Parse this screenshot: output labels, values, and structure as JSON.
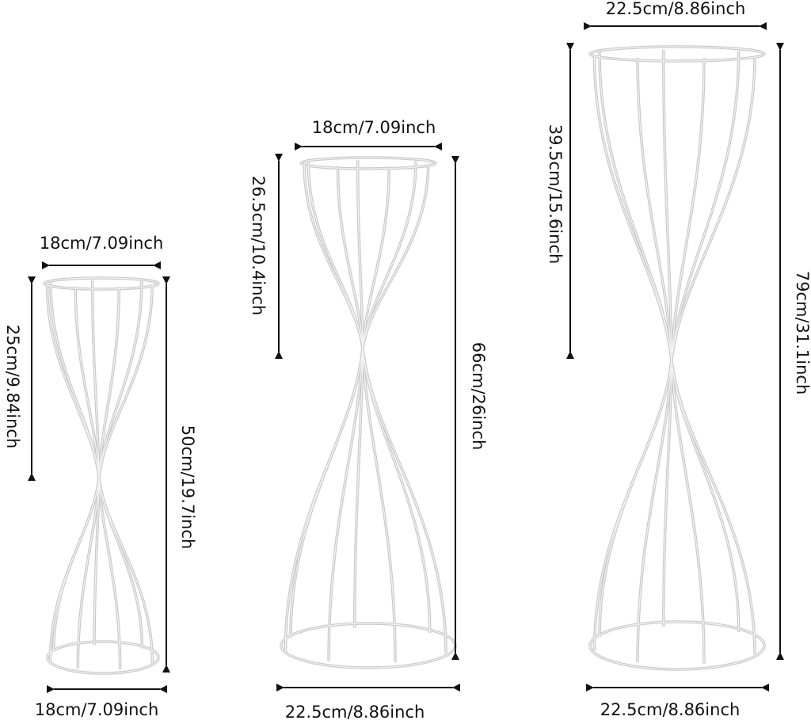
{
  "stands": [
    {
      "top_width": "18cm/7.09inch",
      "upper_height": "25cm/9.84inch",
      "total_height": "50cm/19.7inch",
      "base_width": "18cm/7.09inch"
    },
    {
      "top_width": "18cm/7.09inch",
      "upper_height": "26.5cm/10.4inch",
      "total_height": "66cm/26inch",
      "base_width": "22.5cm/8.86inch"
    },
    {
      "top_width": "22.5cm/8.86inch",
      "upper_height": "39.5cm/15.6inch",
      "total_height": "79cm/31.1inch",
      "base_width": "22.5cm/8.86inch"
    }
  ]
}
